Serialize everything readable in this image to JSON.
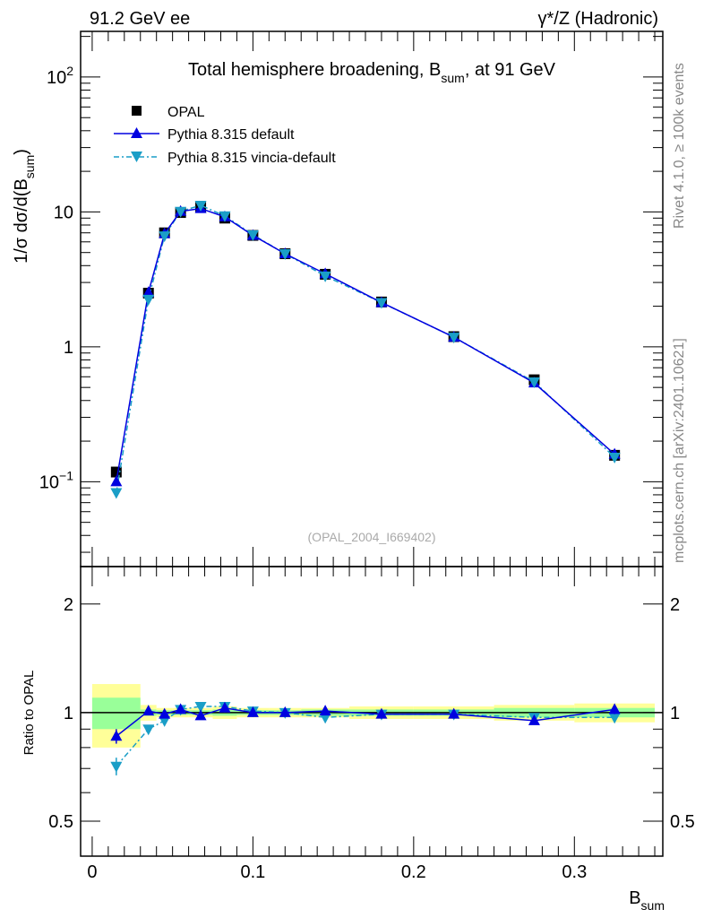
{
  "header": {
    "left": "91.2 GeV ee",
    "right": "γ*/Z (Hadronic)"
  },
  "side": {
    "rivet": "Rivet 4.1.0, ≥ 100k events",
    "mcplots": "mcplots.cern.ch [arXiv:2401.10621]"
  },
  "chart_data": [
    {
      "type": "scatter",
      "title": "Total hemisphere broadening, B",
      "title_sub": "sum",
      "title_tail": ", at 91 GeV",
      "ylabel_a": "1/σ  dσ/d(B",
      "ylabel_sub": "sum",
      "ylabel_b": ")",
      "watermark": "(OPAL_2004_I669402)",
      "yscale": "log",
      "ylim": [
        0.0235,
        218
      ],
      "xlim": [
        -0.0072,
        0.355
      ],
      "ytick_labels": [
        {
          "v": 100,
          "base": "10",
          "exp": "2"
        },
        {
          "v": 10,
          "base": "10",
          "exp": ""
        },
        {
          "v": 1,
          "base": "1",
          "exp": ""
        },
        {
          "v": 0.1,
          "base": "10",
          "exp": "−1"
        }
      ],
      "legend": [
        "OPAL",
        "Pythia 8.315 default",
        "Pythia 8.315 vincia-default"
      ],
      "legend_position": "top-left",
      "x": [
        0.015,
        0.035,
        0.045,
        0.055,
        0.0675,
        0.0825,
        0.1,
        0.12,
        0.145,
        0.18,
        0.225,
        0.275,
        0.325
      ],
      "bin_edges": [
        0,
        0.03,
        0.04,
        0.05,
        0.06,
        0.075,
        0.09,
        0.11,
        0.13,
        0.16,
        0.2,
        0.25,
        0.3,
        0.35
      ],
      "series": [
        {
          "name": "OPAL",
          "values": [
            0.118,
            2.5,
            7.0,
            9.9,
            10.8,
            9.0,
            6.7,
            4.9,
            3.45,
            2.15,
            1.19,
            0.57,
            0.157
          ]
        },
        {
          "name": "Pythia 8.315 default",
          "values": [
            0.1,
            2.53,
            6.9,
            10.1,
            10.6,
            9.2,
            6.7,
            4.9,
            3.48,
            2.13,
            1.18,
            0.54,
            0.16
          ]
        },
        {
          "name": "Pythia 8.315 vincia-default",
          "values": [
            0.083,
            2.25,
            6.65,
            10.1,
            11.2,
            9.35,
            6.77,
            4.9,
            3.35,
            2.13,
            1.18,
            0.55,
            0.152
          ]
        }
      ],
      "colors": {
        "OPAL": "#000000",
        "default": "#0000e0",
        "vincia": "#1a9ec7"
      }
    },
    {
      "type": "scatter",
      "ylabel": "Ratio to OPAL",
      "xlabel": "B",
      "xlabel_sub": "sum",
      "yscale": "log",
      "ylim": [
        0.4,
        2.54
      ],
      "ytick_labels": [
        {
          "v": 2,
          "t": "2"
        },
        {
          "v": 1,
          "t": "1"
        },
        {
          "v": 0.5,
          "t": "0.5"
        }
      ],
      "xtick_labels": [
        {
          "v": 0,
          "t": "0"
        },
        {
          "v": 0.1,
          "t": "0.1"
        },
        {
          "v": 0.2,
          "t": "0.2"
        },
        {
          "v": 0.3,
          "t": "0.3"
        }
      ],
      "band_total": [
        0.2,
        0.05,
        0.03,
        0.03,
        0.03,
        0.04,
        0.03,
        0.03,
        0.03,
        0.04,
        0.04,
        0.05,
        0.06
      ],
      "band_stat": [
        0.1,
        0.02,
        0.015,
        0.015,
        0.015,
        0.02,
        0.015,
        0.015,
        0.02,
        0.02,
        0.02,
        0.03,
        0.03
      ],
      "series": [
        {
          "name": "Pythia 8.315 default",
          "values": [
            0.86,
            1.01,
            0.99,
            1.02,
            0.98,
            1.03,
            1.0,
            1.0,
            1.01,
            0.99,
            0.99,
            0.95,
            1.02
          ],
          "errors": [
            0.04,
            0,
            0,
            0,
            0,
            0,
            0,
            0,
            0,
            0,
            0,
            0,
            0.03
          ]
        },
        {
          "name": "Pythia 8.315 vincia-default",
          "values": [
            0.71,
            0.9,
            0.95,
            1.02,
            1.04,
            1.04,
            1.01,
            1.0,
            0.97,
            0.99,
            0.99,
            0.97,
            0.97
          ],
          "errors": [
            0.04,
            0,
            0,
            0,
            0,
            0,
            0,
            0,
            0,
            0,
            0,
            0,
            0.03
          ]
        }
      ]
    }
  ]
}
